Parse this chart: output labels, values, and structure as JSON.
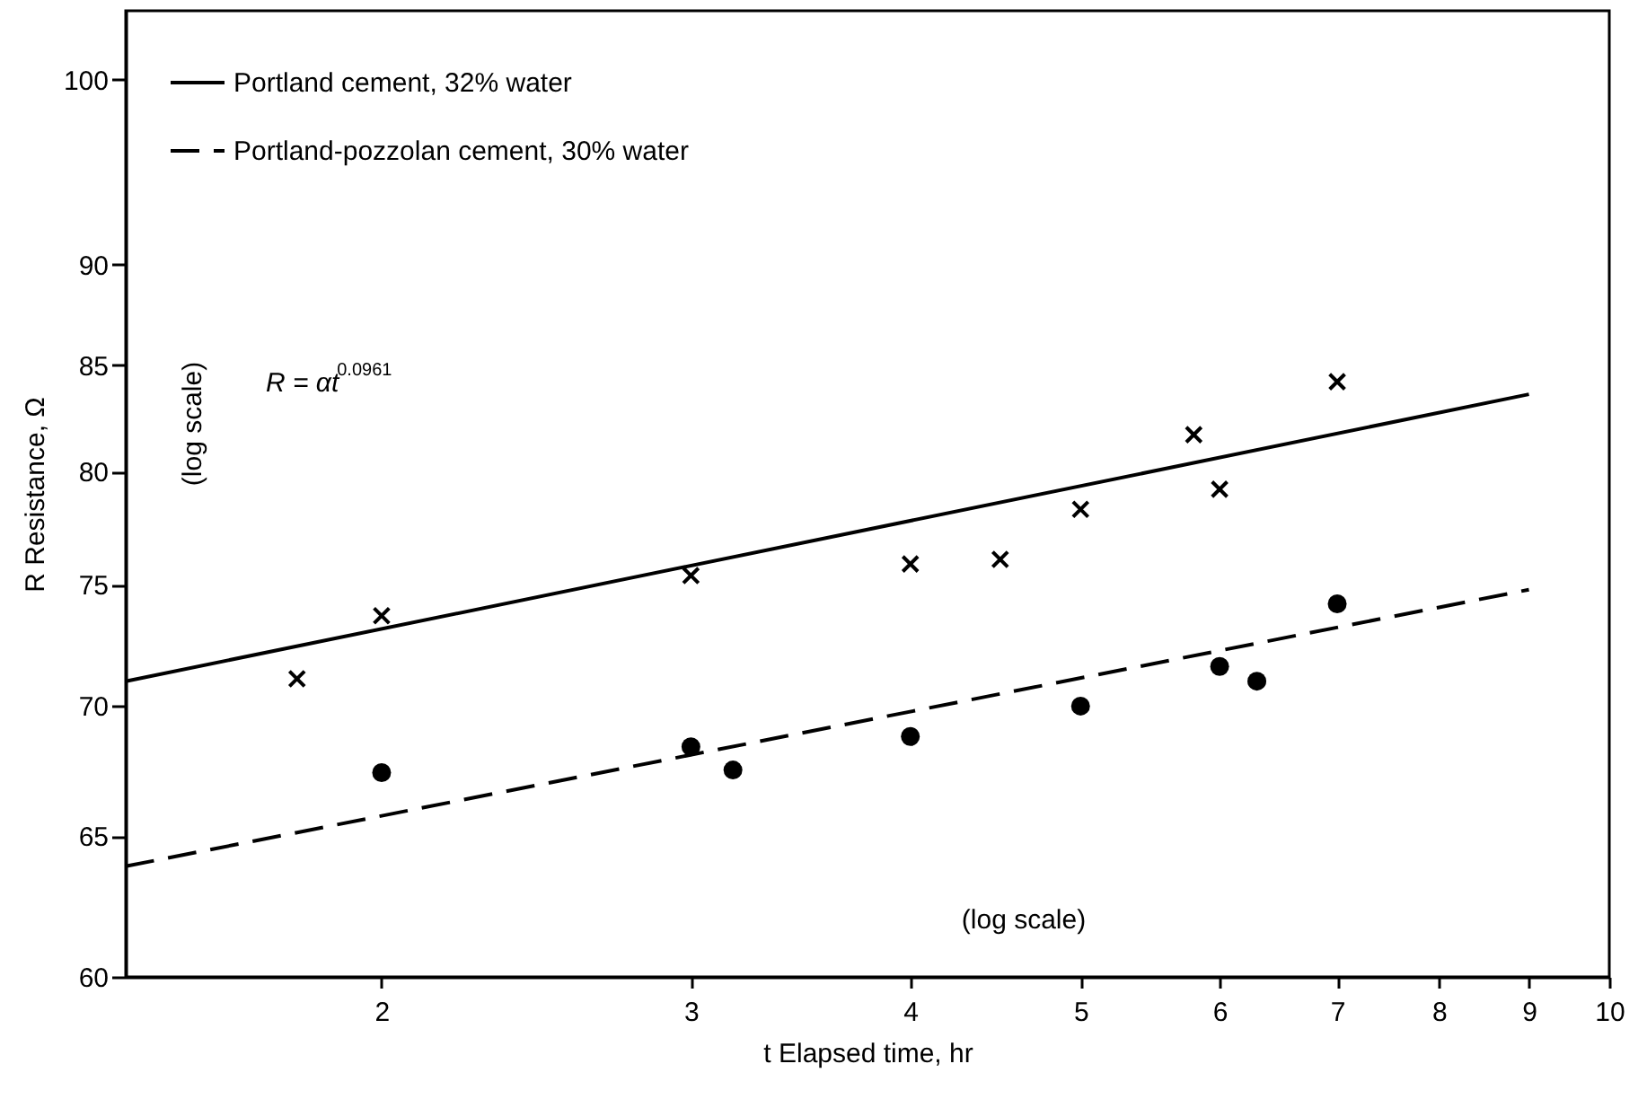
{
  "chart_data": {
    "type": "scatter",
    "xlabel": "t Elapsed time, hr",
    "ylabel": "R Resistance, Ω",
    "log": "xy",
    "grid": false,
    "legend": "top left",
    "xlim": [
      1.43,
      10
    ],
    "ylim": [
      60,
      104
    ],
    "xticks": [
      2,
      3,
      4,
      5,
      6,
      7,
      8,
      9,
      10
    ],
    "yticks": [
      60,
      65,
      70,
      75,
      80,
      85,
      90,
      100
    ],
    "annotations": [
      "(log scale)",
      "R = αt$^{0.0961}$",
      "(log scale)"
    ],
    "series": [
      {
        "name": "Portland cement, 32% water",
        "type": "line",
        "line_style": "solid",
        "color": "#000000",
        "x": [
          1.43,
          9
        ],
        "values": [
          71.0,
          83.6
        ]
      },
      {
        "type": "scatter",
        "marker": "cross",
        "color": "#000000",
        "x": [
          1.79,
          2,
          3,
          4,
          4.5,
          5,
          5.8,
          6,
          7
        ],
        "values": [
          71.1,
          73.7,
          75.4,
          75.9,
          76.1,
          78.3,
          81.7,
          79.2,
          84.2
        ]
      },
      {
        "name": "Portland-pozzolan cement, 30% water",
        "type": "line",
        "line_style": "dashed",
        "color": "#000000",
        "x": [
          1.43,
          9
        ],
        "values": [
          63.9,
          74.8
        ]
      },
      {
        "type": "scatter",
        "marker": "circle",
        "color": "#000000",
        "x": [
          2,
          3,
          3.17,
          4,
          5,
          6,
          6.3,
          7
        ],
        "values": [
          67.4,
          68.4,
          67.5,
          68.8,
          70.0,
          71.6,
          71.0,
          74.2
        ]
      }
    ]
  }
}
